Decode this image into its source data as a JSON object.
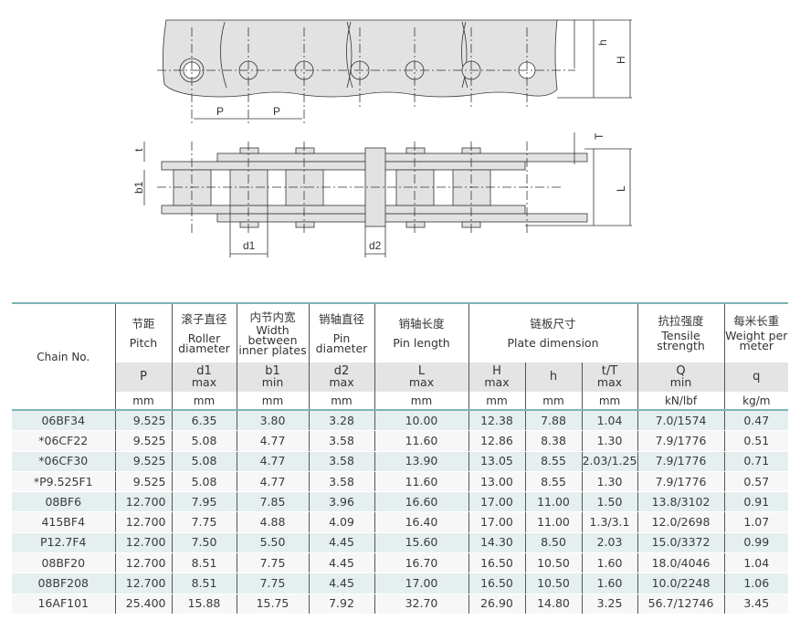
{
  "drawing": {
    "labels": {
      "P": "P",
      "h": "h",
      "H": "H",
      "t": "t",
      "b1": "b1",
      "T": "T",
      "L": "L",
      "d1": "d1",
      "d2": "d2"
    }
  },
  "table": {
    "chain_header": "Chain No.",
    "columns": [
      {
        "cn": "节距",
        "en": "Pitch",
        "symbol": "P",
        "qual": "",
        "unit": "mm"
      },
      {
        "cn": "滚子直径",
        "en": "Roller diameter",
        "symbol": "d1",
        "qual": "max",
        "unit": "mm"
      },
      {
        "cn": "内节内宽",
        "en": "Width between inner plates",
        "symbol": "b1",
        "qual": "min",
        "unit": "mm"
      },
      {
        "cn": "销轴直径",
        "en": "Pin diameter",
        "symbol": "d2",
        "qual": "max",
        "unit": "mm"
      },
      {
        "cn": "销轴长度",
        "en": "Pin length",
        "symbol": "L",
        "qual": "max",
        "unit": "mm"
      },
      {
        "cn": "链板尺寸",
        "en": "Plate dimension"
      },
      {
        "cn": "抗拉强度",
        "en": "Tensile strength",
        "symbol": "Q",
        "qual": "min",
        "unit": "kN/lbf"
      },
      {
        "cn": "每米长重",
        "en": "Weight per meter",
        "symbol": "q",
        "qual": "",
        "unit": "kg/m"
      }
    ],
    "plate_sub": [
      {
        "symbol": "H",
        "qual": "max",
        "unit": "mm"
      },
      {
        "symbol": "h",
        "qual": "",
        "unit": "mm"
      },
      {
        "symbol": "t/T",
        "qual": "max",
        "unit": "mm"
      }
    ],
    "rows": [
      [
        "06BF34",
        "9.525",
        "6.35",
        "3.80",
        "3.28",
        "10.00",
        "12.38",
        "7.88",
        "1.04",
        "7.0/1574",
        "0.47"
      ],
      [
        "*06CF22",
        "9.525",
        "5.08",
        "4.77",
        "3.58",
        "11.60",
        "12.86",
        "8.38",
        "1.30",
        "7.9/1776",
        "0.51"
      ],
      [
        "*06CF30",
        "9.525",
        "5.08",
        "4.77",
        "3.58",
        "13.90",
        "13.05",
        "8.55",
        "2.03/1.25",
        "7.9/1776",
        "0.71"
      ],
      [
        "*P9.525F1",
        "9.525",
        "5.08",
        "4.77",
        "3.58",
        "11.60",
        "13.00",
        "8.55",
        "1.30",
        "7.9/1776",
        "0.57"
      ],
      [
        "08BF6",
        "12.700",
        "7.95",
        "7.85",
        "3.96",
        "16.60",
        "17.00",
        "11.00",
        "1.50",
        "13.8/3102",
        "0.91"
      ],
      [
        "415BF4",
        "12.700",
        "7.75",
        "4.88",
        "4.09",
        "16.40",
        "17.00",
        "11.00",
        "1.3/3.1",
        "12.0/2698",
        "1.07"
      ],
      [
        "P12.7F4",
        "12.700",
        "7.50",
        "5.50",
        "4.45",
        "15.60",
        "14.30",
        "8.50",
        "2.03",
        "15.0/3372",
        "0.99"
      ],
      [
        "08BF20",
        "12.700",
        "8.51",
        "7.75",
        "4.45",
        "16.70",
        "16.50",
        "10.50",
        "1.60",
        "18.0/4046",
        "1.04"
      ],
      [
        "08BF208",
        "12.700",
        "8.51",
        "7.75",
        "4.45",
        "17.00",
        "16.50",
        "10.50",
        "1.60",
        "10.0/2248",
        "1.06"
      ],
      [
        "16AF101",
        "25.400",
        "15.88",
        "15.75",
        "7.92",
        "32.70",
        "26.90",
        "14.80",
        "3.25",
        "56.7/12746",
        "3.45"
      ]
    ]
  }
}
